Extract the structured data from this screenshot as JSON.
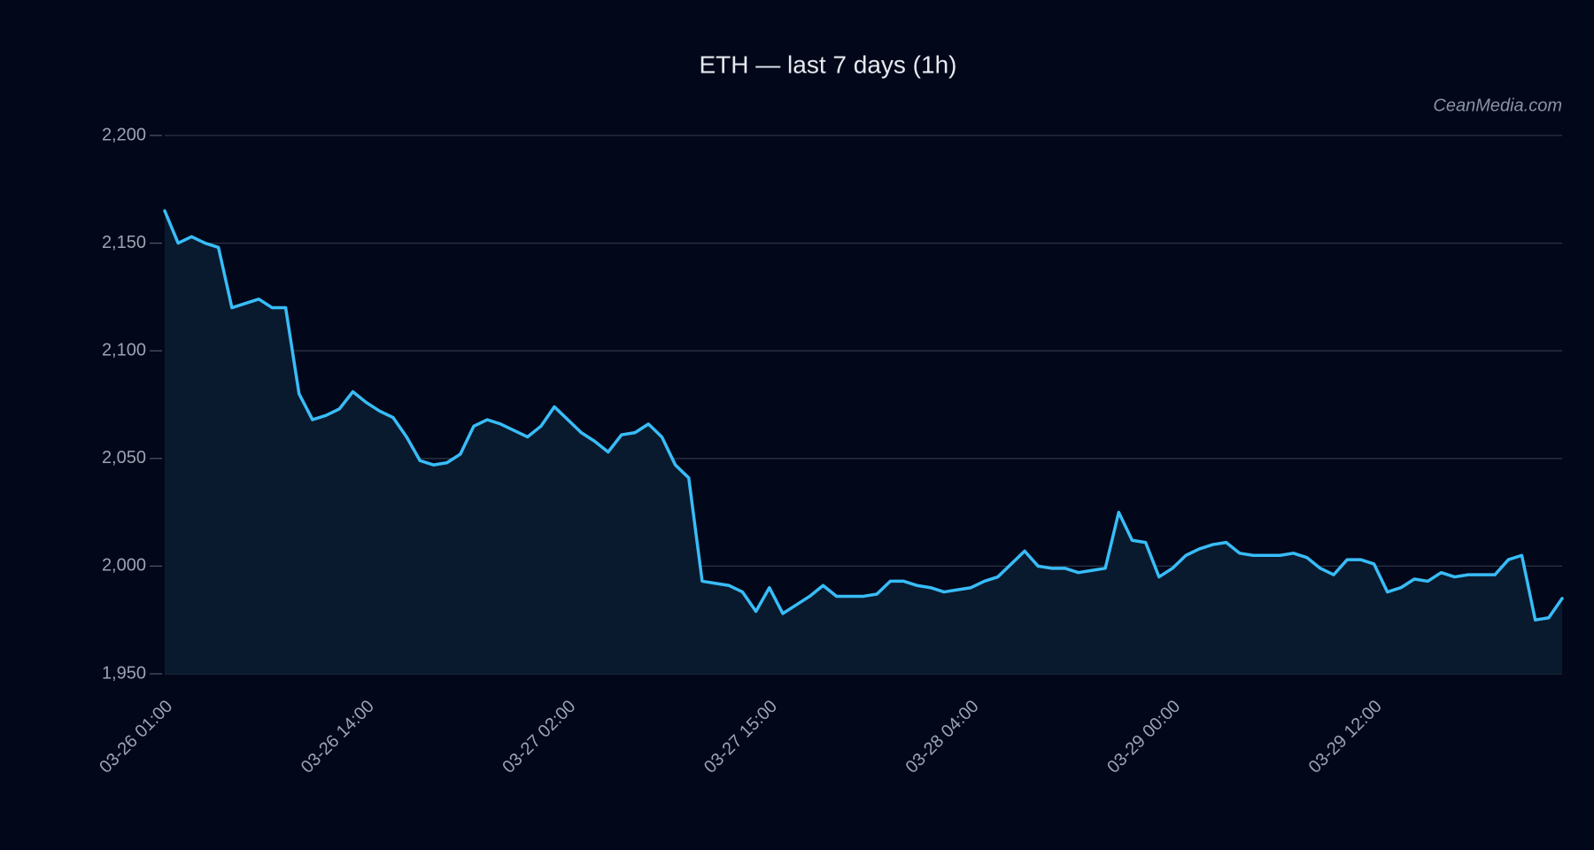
{
  "chart_data": {
    "type": "area",
    "title": "ETH — last 7 days (1h)",
    "watermark": "CeanMedia.com",
    "categories": [
      "03-26 01:00",
      null,
      null,
      null,
      null,
      null,
      null,
      null,
      null,
      null,
      null,
      null,
      null,
      null,
      null,
      "03-26 14:00",
      null,
      null,
      null,
      null,
      null,
      null,
      null,
      null,
      null,
      null,
      null,
      null,
      null,
      null,
      "03-27 02:00",
      null,
      null,
      null,
      null,
      null,
      null,
      null,
      null,
      null,
      null,
      null,
      null,
      null,
      null,
      "03-27 15:00",
      null,
      null,
      null,
      null,
      null,
      null,
      null,
      null,
      null,
      null,
      null,
      null,
      null,
      null,
      "03-28 04:00",
      null,
      null,
      null,
      null,
      null,
      null,
      null,
      null,
      null,
      null,
      null,
      null,
      null,
      null,
      "03-29 00:00",
      null,
      null,
      null,
      null,
      null,
      null,
      null,
      null,
      null,
      null,
      null,
      null,
      null,
      null,
      "03-29 12:00",
      null,
      null,
      null,
      null,
      null,
      null,
      null,
      null,
      null,
      null,
      null,
      null,
      null,
      null
    ],
    "series": [
      {
        "name": "ETH",
        "color": "#38bdf8",
        "fill": "#0a1a2e",
        "values": [
          2165,
          2150,
          2153,
          2150,
          2148,
          2120,
          2122,
          2124,
          2120,
          2120,
          2080,
          2068,
          2070,
          2073,
          2081,
          2076,
          2072,
          2069,
          2060,
          2049,
          2047,
          2048,
          2052,
          2065,
          2068,
          2066,
          2063,
          2060,
          2065,
          2074,
          2068,
          2062,
          2058,
          2053,
          2061,
          2062,
          2066,
          2060,
          2047,
          2041,
          1993,
          1992,
          1991,
          1988,
          1979,
          1990,
          1978,
          1982,
          1986,
          1991,
          1986,
          1986,
          1986,
          1987,
          1993,
          1993,
          1991,
          1990,
          1988,
          1989,
          1990,
          1993,
          1995,
          2001,
          2007,
          2000,
          1999,
          1999,
          1997,
          1998,
          1999,
          2025,
          2012,
          2011,
          1995,
          1999,
          2005,
          2008,
          2010,
          2011,
          2006,
          2005,
          2005,
          2005,
          2006,
          2004,
          1999,
          1996,
          2003,
          2003,
          2001,
          1988,
          1990,
          1994,
          1993,
          1997,
          1995,
          1996,
          1996,
          1996,
          2003,
          2005,
          1975,
          1976,
          1985
        ]
      }
    ],
    "ylim": [
      1950,
      2200
    ],
    "yticks": [
      {
        "value": 1950,
        "label": "1,950"
      },
      {
        "value": 2000,
        "label": "2,000"
      },
      {
        "value": 2050,
        "label": "2,050"
      },
      {
        "value": 2100,
        "label": "2,100"
      },
      {
        "value": 2150,
        "label": "2,150"
      },
      {
        "value": 2200,
        "label": "2,200"
      }
    ],
    "grid": true
  }
}
